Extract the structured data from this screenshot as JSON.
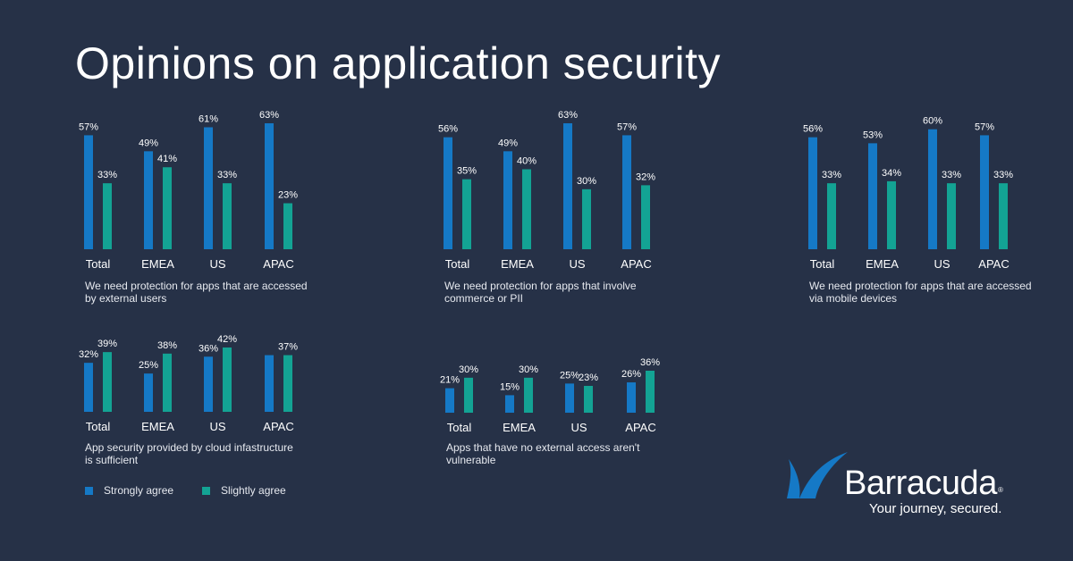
{
  "title": "Opinions on application security",
  "colors": {
    "background": "#263147",
    "strongly_agree": "#1579c6",
    "slightly_agree": "#13a394"
  },
  "legend": [
    {
      "label": "Strongly agree",
      "color": "#1579c6"
    },
    {
      "label": "Slightly agree",
      "color": "#13a394"
    }
  ],
  "chart_data": [
    {
      "type": "bar",
      "caption": "We need protection for apps that are accessed by external users",
      "categories": [
        "Total",
        "EMEA",
        "US",
        "APAC"
      ],
      "series": [
        {
          "name": "Strongly agree",
          "values": [
            57,
            49,
            61,
            63
          ],
          "labels": [
            "57%",
            "49%",
            "61%",
            "63%"
          ]
        },
        {
          "name": "Slightly agree",
          "values": [
            33,
            41,
            33,
            23
          ],
          "labels": [
            "33%",
            "41%",
            "33%",
            "23%"
          ]
        }
      ],
      "ylim": [
        0,
        63
      ]
    },
    {
      "type": "bar",
      "caption": "We need protection for apps that involve commerce or PII",
      "categories": [
        "Total",
        "EMEA",
        "US",
        "APAC"
      ],
      "series": [
        {
          "name": "Strongly agree",
          "values": [
            56,
            49,
            63,
            57
          ],
          "labels": [
            "56%",
            "49%",
            "63%",
            "57%"
          ]
        },
        {
          "name": "Slightly agree",
          "values": [
            35,
            40,
            30,
            32
          ],
          "labels": [
            "35%",
            "40%",
            "30%",
            "32%"
          ]
        }
      ],
      "ylim": [
        0,
        63
      ]
    },
    {
      "type": "bar",
      "caption": "We need protection for apps that are accessed via mobile devices",
      "categories": [
        "Total",
        "EMEA",
        "US",
        "APAC"
      ],
      "series": [
        {
          "name": "Strongly agree",
          "values": [
            56,
            53,
            60,
            57
          ],
          "labels": [
            "56%",
            "53%",
            "60%",
            "57%"
          ]
        },
        {
          "name": "Slightly agree",
          "values": [
            33,
            34,
            33,
            33
          ],
          "labels": [
            "33%",
            "34%",
            "33%",
            "33%"
          ]
        }
      ],
      "ylim": [
        0,
        63
      ]
    },
    {
      "type": "bar",
      "caption": "App security provided by cloud infastructure is sufficient",
      "categories": [
        "Total",
        "EMEA",
        "US",
        "APAC"
      ],
      "series": [
        {
          "name": "Strongly agree",
          "values": [
            32,
            25,
            36,
            37
          ],
          "labels": [
            "32%",
            "25%",
            "36%",
            ""
          ]
        },
        {
          "name": "Slightly agree",
          "values": [
            39,
            38,
            42,
            37
          ],
          "labels": [
            "39%",
            "38%",
            "42%",
            "37%"
          ]
        }
      ],
      "ylim": [
        0,
        42
      ]
    },
    {
      "type": "bar",
      "caption": "Apps that have no external access aren't vulnerable",
      "categories": [
        "Total",
        "EMEA",
        "US",
        "APAC"
      ],
      "series": [
        {
          "name": "Strongly agree",
          "values": [
            21,
            15,
            25,
            26
          ],
          "labels": [
            "21%",
            "15%",
            "25%",
            "26%"
          ]
        },
        {
          "name": "Slightly agree",
          "values": [
            30,
            30,
            23,
            36
          ],
          "labels": [
            "30%",
            "30%",
            "23%",
            "36%"
          ]
        }
      ],
      "ylim": [
        0,
        36
      ]
    }
  ],
  "brand": {
    "name": "Barracuda",
    "registered": "®",
    "tagline": "Your journey, secured."
  }
}
